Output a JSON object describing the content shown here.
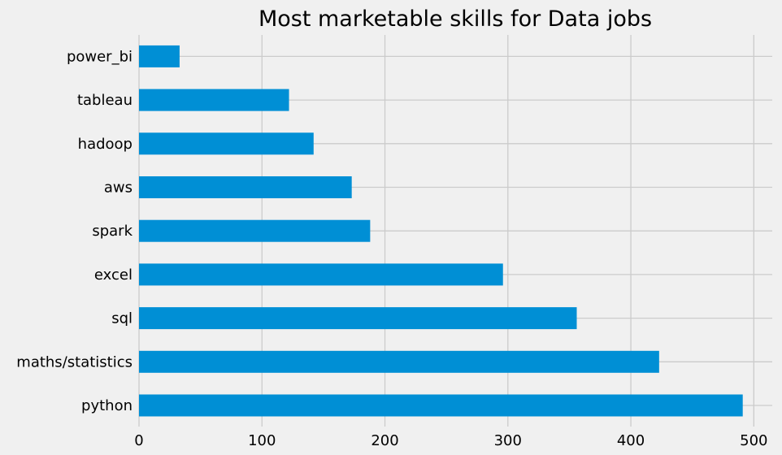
{
  "chart_data": {
    "type": "bar",
    "orientation": "horizontal",
    "title": "Most marketable skills for Data jobs",
    "xlabel": "",
    "ylabel": "",
    "categories": [
      "python",
      "maths/statistics",
      "sql",
      "excel",
      "spark",
      "aws",
      "hadoop",
      "tableau",
      "power_bi"
    ],
    "values": [
      491,
      423,
      356,
      296,
      188,
      173,
      142,
      122,
      33
    ],
    "xlim": [
      0,
      515
    ],
    "xticks": [
      0,
      100,
      200,
      300,
      400,
      500
    ],
    "xtick_labels": [
      "0",
      "100",
      "200",
      "300",
      "400",
      "500"
    ],
    "grid": true,
    "bar_color": "#008fd5",
    "background_color": "#f0f0f0",
    "grid_color": "#cbcbcb"
  }
}
